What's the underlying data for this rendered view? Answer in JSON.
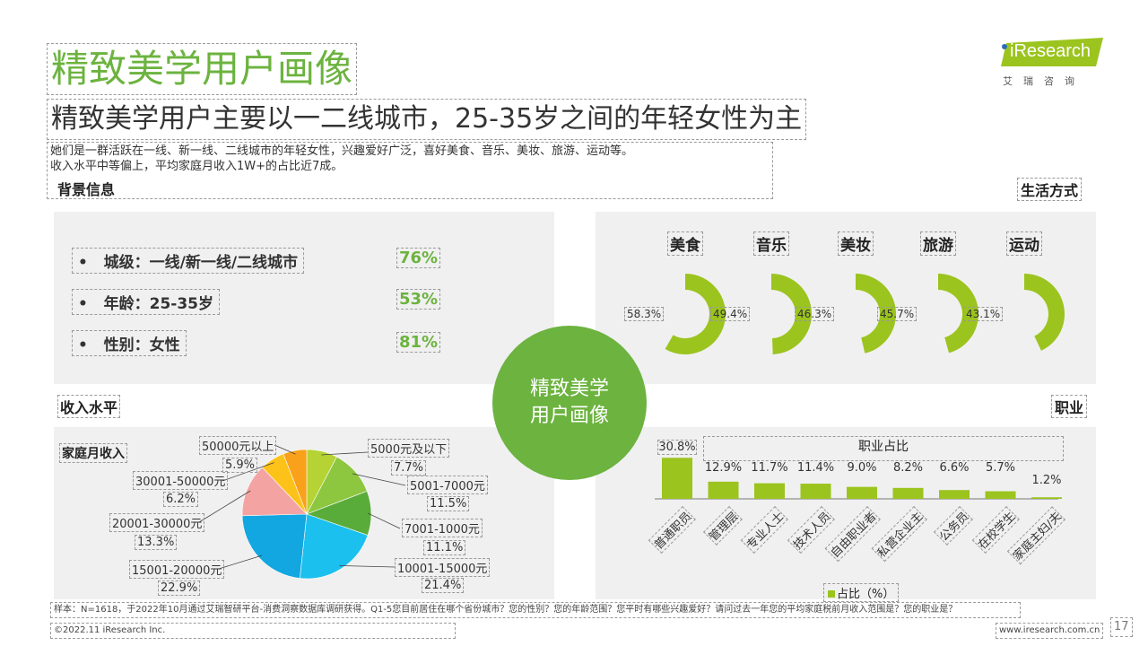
{
  "header": {
    "title": "精致美学用户画像",
    "subtitle": "精致美学用户主要以一二线城市，25-35岁之间的年轻女性为主",
    "desc_line1": "她们是一群活跃在一线、新一线、二线城市的年轻女性，兴趣爱好广泛，喜好美食、音乐、美妆、旅游、运动等。",
    "desc_line2": "收入水平中等偏上，平均家庭月收入1W+的占比近7成。"
  },
  "logo": {
    "brand": "iResearch",
    "cn": "艾瑞咨询",
    "colors": {
      "brand_green": "#9bc41e"
    }
  },
  "center": {
    "line1": "精致美学",
    "line2": "用户画像"
  },
  "sections": {
    "background": "背景信息",
    "lifestyle": "生活方式",
    "income": "收入水平",
    "job": "职业",
    "family_income": "家庭月收入"
  },
  "background_items": [
    {
      "bullet": "•",
      "label": "城级：一线/新一线/二线城市",
      "value": "76%"
    },
    {
      "bullet": "•",
      "label": "年龄：25-35岁",
      "value": "53%"
    },
    {
      "bullet": "•",
      "label": "性别：女性",
      "value": "81%"
    }
  ],
  "chart_data": [
    {
      "type": "pie",
      "title": "",
      "categories": [
        "美食",
        "音乐",
        "美妆",
        "旅游",
        "运动"
      ],
      "values": [
        58.3,
        49.4,
        46.3,
        45.7,
        43.1
      ],
      "labels": [
        "58.3%",
        "49.4%",
        "46.3%",
        "45.7%",
        "43.1%"
      ],
      "colors": {
        "fill": "#9bc41e",
        "track": "#f0f0f0"
      }
    },
    {
      "type": "pie",
      "title": "家庭月收入",
      "categories": [
        "5000元及以下",
        "5001-7000元",
        "7001-1000元",
        "10001-15000元",
        "15001-20000元",
        "20001-30000元",
        "30001-50000元",
        "50000元以上"
      ],
      "values": [
        7.7,
        11.5,
        11.1,
        21.4,
        22.9,
        13.3,
        6.2,
        5.9
      ],
      "labels": [
        "7.7%",
        "11.5%",
        "11.1%",
        "21.4%",
        "22.9%",
        "13.3%",
        "6.2%",
        "5.9%"
      ],
      "colors": [
        "#b5d334",
        "#8dc63f",
        "#5aac3a",
        "#1cc0ef",
        "#12a7e0",
        "#f4a3a3",
        "#fdc219",
        "#f9a11b"
      ]
    },
    {
      "type": "bar",
      "title": "职业占比",
      "categories": [
        "普通职员",
        "管理层",
        "专业人士",
        "技术人员",
        "自由职业者",
        "私营企业主",
        "公务员",
        "在校学生",
        "家庭主妇/夫"
      ],
      "values": [
        30.8,
        12.9,
        11.7,
        11.4,
        9.0,
        8.2,
        6.6,
        5.7,
        1.2
      ],
      "labels": [
        "30.8%",
        "12.9%",
        "11.7%",
        "11.4%",
        "9.0%",
        "8.2%",
        "6.6%",
        "5.7%",
        "1.2%"
      ],
      "legend": "占比（%）",
      "ylim": [
        0,
        35
      ],
      "colors": {
        "bar": "#9bc41e"
      }
    }
  ],
  "footer": {
    "note": "样本：N=1618，于2022年10月通过艾瑞智研平台-消费洞察数据库调研获得。Q1-5您目前居住在哪个省份城市？您的性别？您的年龄范围？您平时有哪些兴趣爱好？请问过去一年您的平均家庭税前月收入范围是？您的职业是？",
    "copyright": "©2022.11 iResearch Inc.",
    "website": "www.iresearch.com.cn",
    "page": "17"
  },
  "colors": {
    "accent": "#6cb33f",
    "panel": "#f0f0f0"
  }
}
